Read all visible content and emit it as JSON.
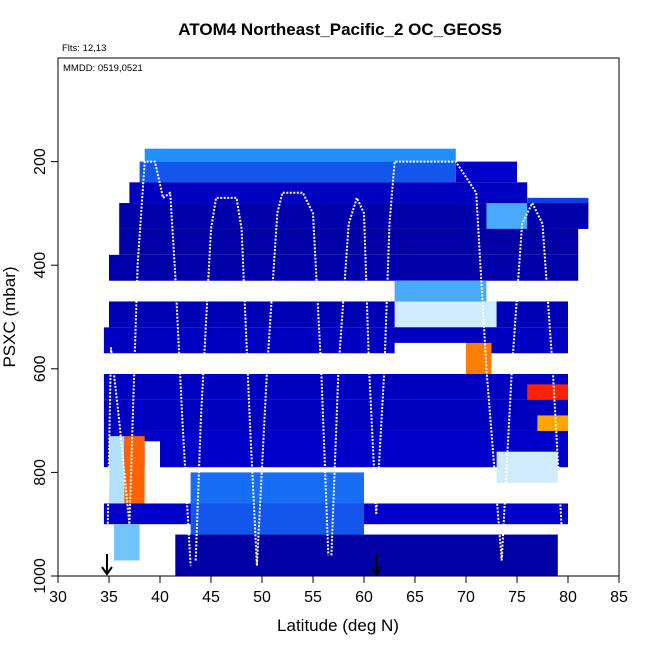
{
  "chart_data": {
    "type": "heatmap",
    "title": "ATOM4 Northeast_Pacific_2 OC_GEOS5",
    "annotations": [
      "Flts: 12,13",
      "MMDD: 0519,0521"
    ],
    "xlabel": "Latitude (deg N)",
    "ylabel": "PSXC (mbar)",
    "xlim": [
      30,
      85
    ],
    "ylim": [
      1000,
      0
    ],
    "x_ticks": [
      30,
      35,
      40,
      45,
      50,
      55,
      60,
      65,
      70,
      75,
      80,
      85
    ],
    "y_ticks": [
      200,
      400,
      600,
      800,
      1000
    ],
    "grid": false,
    "colormap": [
      "#00008b",
      "#0000cd",
      "#1e90ff",
      "#87cefa",
      "#ffffff",
      "#ffff00",
      "#ffa500",
      "#ff0000",
      "#cd0000"
    ],
    "arrow_markers_lat": [
      34.8,
      61.2
    ],
    "cells": [
      {
        "lat": [
          38.5,
          69
        ],
        "p": [
          175,
          200
        ],
        "v": 0.25
      },
      {
        "lat": [
          38,
          69
        ],
        "p": [
          200,
          240
        ],
        "v": 0.2
      },
      {
        "lat": [
          69,
          75
        ],
        "p": [
          200,
          240
        ],
        "v": 0.12
      },
      {
        "lat": [
          37,
          76
        ],
        "p": [
          240,
          280
        ],
        "v": 0.1
      },
      {
        "lat": [
          76,
          82
        ],
        "p": [
          270,
          300
        ],
        "v": 0.18
      },
      {
        "lat": [
          36,
          82
        ],
        "p": [
          280,
          330
        ],
        "v": 0.06
      },
      {
        "lat": [
          72,
          76
        ],
        "p": [
          280,
          330
        ],
        "v": 0.3
      },
      {
        "lat": [
          36,
          81
        ],
        "p": [
          330,
          380
        ],
        "v": 0.05
      },
      {
        "lat": [
          35,
          81
        ],
        "p": [
          380,
          430
        ],
        "v": 0.06
      },
      {
        "lat": [
          63,
          72
        ],
        "p": [
          430,
          470
        ],
        "v": 0.3
      },
      {
        "lat": [
          35,
          80
        ],
        "p": [
          470,
          520
        ],
        "v": 0.08
      },
      {
        "lat": [
          63,
          73
        ],
        "p": [
          470,
          520
        ],
        "v": 0.45
      },
      {
        "lat": [
          34.5,
          80
        ],
        "p": [
          520,
          570
        ],
        "v": 0.1
      },
      {
        "lat": [
          63,
          70
        ],
        "p": [
          550,
          610
        ],
        "v": 0.5
      },
      {
        "lat": [
          70,
          72.5
        ],
        "p": [
          550,
          610
        ],
        "v": 0.78
      },
      {
        "lat": [
          34.5,
          80
        ],
        "p": [
          610,
          660
        ],
        "v": 0.1
      },
      {
        "lat": [
          76,
          80
        ],
        "p": [
          630,
          690
        ],
        "v": 0.85
      },
      {
        "lat": [
          34.5,
          80
        ],
        "p": [
          660,
          720
        ],
        "v": 0.1
      },
      {
        "lat": [
          77,
          80
        ],
        "p": [
          690,
          730
        ],
        "v": 0.75
      },
      {
        "lat": [
          34.5,
          80
        ],
        "p": [
          720,
          790
        ],
        "v": 0.12
      },
      {
        "lat": [
          35,
          36.5
        ],
        "p": [
          730,
          860
        ],
        "v": 0.42
      },
      {
        "lat": [
          36.5,
          38.5
        ],
        "p": [
          730,
          860
        ],
        "v": 0.8
      },
      {
        "lat": [
          38.5,
          40
        ],
        "p": [
          740,
          860
        ],
        "v": 0.5
      },
      {
        "lat": [
          73,
          79
        ],
        "p": [
          760,
          820
        ],
        "v": 0.45
      },
      {
        "lat": [
          43,
          60
        ],
        "p": [
          800,
          860
        ],
        "v": 0.22
      },
      {
        "lat": [
          34.5,
          80
        ],
        "p": [
          860,
          900
        ],
        "v": 0.12
      },
      {
        "lat": [
          43,
          60
        ],
        "p": [
          860,
          920
        ],
        "v": 0.2
      },
      {
        "lat": [
          35.5,
          38
        ],
        "p": [
          900,
          970
        ],
        "v": 0.35
      },
      {
        "lat": [
          41.5,
          79
        ],
        "p": [
          920,
          1000
        ],
        "v": 0.05
      }
    ],
    "flight_tracks": [
      {
        "lat": [
          34.8,
          35.2,
          36,
          37,
          37.8,
          38.5,
          39.5,
          40.3,
          41,
          41.5,
          42.2,
          43
        ],
        "p": [
          980,
          560,
          700,
          900,
          400,
          200,
          200,
          270,
          260,
          420,
          700,
          980
        ]
      },
      {
        "lat": [
          43.5,
          44,
          45,
          45.5,
          47.5,
          48,
          48.8,
          49.5
        ],
        "p": [
          970,
          700,
          330,
          270,
          270,
          330,
          700,
          980
        ]
      },
      {
        "lat": [
          49.5,
          50.5,
          51.5,
          52,
          54,
          55,
          55.8,
          56.5
        ],
        "p": [
          980,
          600,
          300,
          260,
          260,
          300,
          600,
          960
        ]
      },
      {
        "lat": [
          56.8,
          57.5,
          58.5,
          59.3,
          60,
          60.5,
          61.2
        ],
        "p": [
          960,
          600,
          320,
          270,
          300,
          600,
          880
        ]
      },
      {
        "lat": [
          61.2,
          62,
          62.5,
          63,
          69,
          71,
          72,
          73.5
        ],
        "p": [
          880,
          600,
          320,
          200,
          200,
          260,
          600,
          970
        ]
      },
      {
        "lat": [
          73.5,
          74.5,
          75.5,
          76.5,
          77.5,
          78.5,
          79.5
        ],
        "p": [
          970,
          600,
          320,
          280,
          320,
          600,
          950
        ]
      }
    ]
  }
}
